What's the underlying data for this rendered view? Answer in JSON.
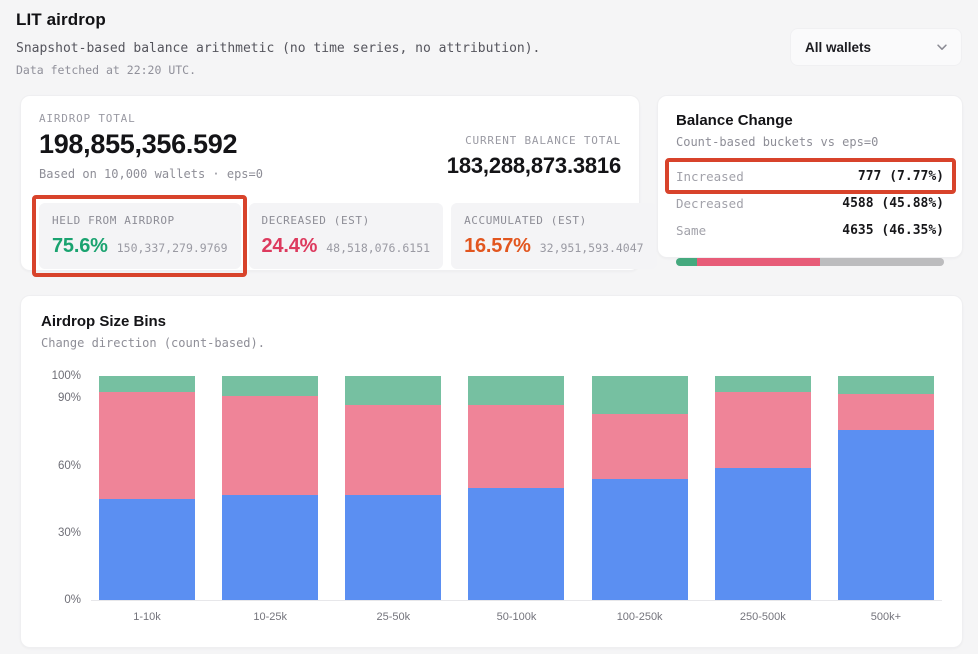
{
  "annotation_color": "#d8432b",
  "page": {
    "title": "LIT airdrop",
    "subtitle": "Snapshot-based balance arithmetic (no time series, no attribution).",
    "fetched": "Data fetched at 22:20 UTC."
  },
  "wallet_filter": {
    "value": "All wallets"
  },
  "summary": {
    "airdrop_total_label": "AIRDROP TOTAL",
    "airdrop_total": "198,855,356.592",
    "based_on": "Based on 10,000 wallets · eps=0",
    "current_balance_label": "CURRENT BALANCE TOTAL",
    "current_balance": "183,288,873.3816",
    "stats": [
      {
        "label": "HELD FROM AIRDROP",
        "pct": "75.6%",
        "value": "150,337,279.9769",
        "color": "#1aa370",
        "highlighted": true
      },
      {
        "label": "DECREASED (EST)",
        "pct": "24.4%",
        "value": "48,518,076.6151",
        "color": "#dd3a5e",
        "highlighted": false
      },
      {
        "label": "ACCUMULATED (EST)",
        "pct": "16.57%",
        "value": "32,951,593.4047",
        "color": "#e2561f",
        "highlighted": false
      }
    ]
  },
  "balance_change": {
    "title": "Balance Change",
    "subtitle": "Count-based buckets vs eps=0",
    "rows": [
      {
        "label": "Increased",
        "value": "777 (7.77%)",
        "highlighted": true
      },
      {
        "label": "Decreased",
        "value": "4588 (45.88%)",
        "highlighted": false
      },
      {
        "label": "Same",
        "value": "4635 (46.35%)",
        "highlighted": false
      }
    ],
    "bar_segments": [
      {
        "name": "increased",
        "pct": 7.77,
        "color": "#45a97e"
      },
      {
        "name": "decreased",
        "pct": 45.88,
        "color": "#e75c78"
      },
      {
        "name": "same",
        "pct": 46.35,
        "color": "#bcbcbe"
      }
    ]
  },
  "chart_data": {
    "type": "bar",
    "stacked": true,
    "percent": true,
    "title": "Airdrop Size Bins",
    "subtitle": "Change direction (count-based).",
    "categories": [
      "1-10k",
      "10-25k",
      "25-50k",
      "50-100k",
      "100-250k",
      "250-500k",
      "500k+"
    ],
    "series": [
      {
        "name": "Same",
        "color": "#5b8ff2",
        "values": [
          45,
          47,
          47,
          50,
          54,
          59,
          76
        ]
      },
      {
        "name": "Decreased",
        "color": "#ef8498",
        "values": [
          48,
          44,
          40,
          37,
          29,
          34,
          16
        ]
      },
      {
        "name": "Increased",
        "color": "#76c0a1",
        "values": [
          7,
          9,
          13,
          13,
          17,
          7,
          8
        ]
      }
    ],
    "xlabel": "",
    "ylabel": "",
    "ylim": [
      0,
      100
    ],
    "y_ticks": [
      "0%",
      "30%",
      "60%",
      "90%",
      "100%"
    ],
    "y_tick_values": [
      0,
      30,
      60,
      90,
      100
    ],
    "grid": false,
    "legend": "none"
  }
}
